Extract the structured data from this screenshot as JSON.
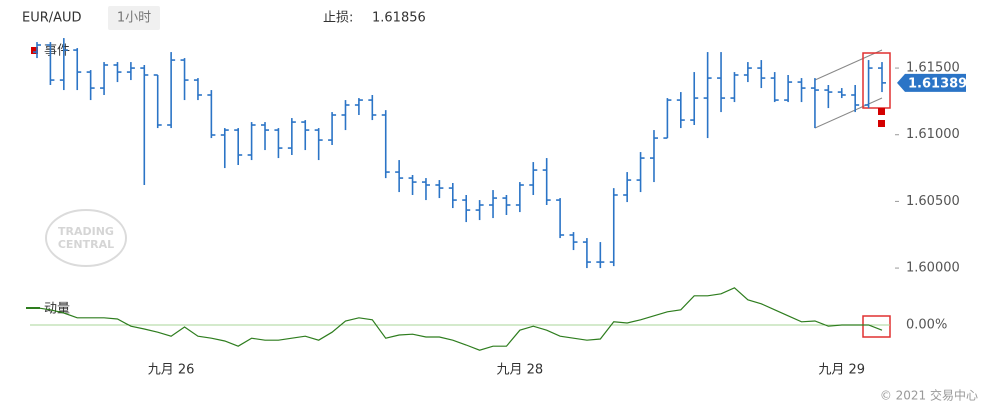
{
  "header": {
    "symbol": "EUR/AUD",
    "interval": "1小时",
    "stop_label": "止损:",
    "stop_value": 1.61856
  },
  "chart_data": [
    {
      "type": "ohlc",
      "legend": "事件",
      "color": "#2b74c6",
      "categories": [
        null,
        null,
        null,
        null,
        null,
        null,
        null,
        null,
        null,
        null,
        "九月 26",
        null,
        null,
        null,
        null,
        null,
        null,
        null,
        null,
        null,
        null,
        null,
        null,
        null,
        null,
        null,
        null,
        null,
        null,
        null,
        null,
        null,
        null,
        null,
        null,
        null,
        "九月 28",
        null,
        null,
        null,
        null,
        null,
        null,
        null,
        null,
        null,
        null,
        null,
        null,
        null,
        null,
        null,
        null,
        null,
        null,
        null,
        null,
        null,
        null,
        null,
        "九月 29",
        null,
        null,
        null
      ],
      "open": [
        1.6162,
        1.61673,
        1.6141,
        1.61635,
        1.6147,
        1.6135,
        1.61523,
        1.6147,
        1.615,
        1.61448,
        1.61073,
        1.6156,
        1.6141,
        1.61298,
        1.60998,
        1.61035,
        1.60848,
        1.61073,
        1.61035,
        1.609,
        1.61095,
        1.61035,
        1.6096,
        1.61148,
        1.61223,
        1.6126,
        1.61148,
        1.6072,
        1.60675,
        1.60645,
        1.60623,
        1.606,
        1.6051,
        1.60435,
        1.60473,
        1.60525,
        1.60473,
        1.60623,
        1.60735,
        1.6051,
        1.60248,
        1.60195,
        1.60045,
        1.60045,
        1.60548,
        1.6066,
        1.60825,
        1.60975,
        1.6126,
        1.6111,
        1.61275,
        1.61425,
        1.61275,
        1.61448,
        1.615,
        1.61425,
        1.6126,
        1.61395,
        1.6135,
        1.61335,
        1.6132,
        1.61298,
        1.61223,
        1.615
      ],
      "high": [
        1.61695,
        1.61695,
        1.61725,
        1.6165,
        1.61485,
        1.61545,
        1.61545,
        1.61545,
        1.61523,
        1.61448,
        1.6162,
        1.61575,
        1.61425,
        1.61335,
        1.6105,
        1.6105,
        1.61095,
        1.61095,
        1.6105,
        1.61125,
        1.6111,
        1.6105,
        1.6117,
        1.6126,
        1.61275,
        1.61298,
        1.61185,
        1.6081,
        1.60698,
        1.60675,
        1.6066,
        1.60638,
        1.60548,
        1.6051,
        1.60585,
        1.60548,
        1.60645,
        1.60795,
        1.60825,
        1.60525,
        1.6027,
        1.60225,
        1.60195,
        1.606,
        1.6072,
        1.6087,
        1.61035,
        1.61275,
        1.6132,
        1.6147,
        1.6162,
        1.6162,
        1.6147,
        1.61545,
        1.6156,
        1.6147,
        1.61448,
        1.61425,
        1.61425,
        1.61373,
        1.6135,
        1.61373,
        1.6156,
        1.61545
      ],
      "low": [
        1.61575,
        1.61373,
        1.61335,
        1.61335,
        1.6126,
        1.61298,
        1.61395,
        1.6141,
        1.60623,
        1.6105,
        1.6105,
        1.6126,
        1.6126,
        1.60975,
        1.6075,
        1.60773,
        1.6081,
        1.60885,
        1.60825,
        1.60848,
        1.60885,
        1.6081,
        1.60923,
        1.61035,
        1.61148,
        1.6111,
        1.60675,
        1.6057,
        1.60548,
        1.6051,
        1.60525,
        1.6045,
        1.60345,
        1.6036,
        1.60375,
        1.60398,
        1.6042,
        1.60548,
        1.60473,
        1.60225,
        1.60135,
        1.6,
        1.6,
        1.60015,
        1.60495,
        1.6057,
        1.60645,
        1.60975,
        1.6105,
        1.61073,
        1.60975,
        1.6117,
        1.61245,
        1.61395,
        1.6135,
        1.61245,
        1.61245,
        1.61245,
        1.6105,
        1.612,
        1.61275,
        1.6117,
        1.612,
        1.6132
      ],
      "close": [
        1.61673,
        1.6141,
        1.61635,
        1.6147,
        1.6135,
        1.61523,
        1.6147,
        1.615,
        1.61448,
        1.61073,
        1.6156,
        1.6141,
        1.61298,
        1.60998,
        1.61035,
        1.60848,
        1.61073,
        1.61035,
        1.609,
        1.61095,
        1.61035,
        1.6096,
        1.61148,
        1.61223,
        1.6126,
        1.61148,
        1.6072,
        1.60675,
        1.60645,
        1.60623,
        1.606,
        1.6051,
        1.60435,
        1.60473,
        1.60525,
        1.60473,
        1.60623,
        1.60735,
        1.6051,
        1.60248,
        1.60195,
        1.60045,
        1.60045,
        1.60548,
        1.6066,
        1.60825,
        1.60975,
        1.6126,
        1.6111,
        1.61275,
        1.61425,
        1.61275,
        1.61448,
        1.615,
        1.61425,
        1.6126,
        1.61395,
        1.6135,
        1.61335,
        1.6132,
        1.61298,
        1.61223,
        1.615,
        1.61389
      ],
      "ylim": [
        1.59873,
        1.61748
      ],
      "yticks": [
        {
          "value": 1.6,
          "label": "1.60000"
        },
        {
          "value": 1.605,
          "label": "1.60500"
        },
        {
          "value": 1.61,
          "label": "1.61000"
        },
        {
          "value": 1.615,
          "label": "1.61500"
        }
      ]
    },
    {
      "type": "line",
      "series": [
        {
          "name": "动量",
          "color": "#2e7d1e",
          "values": [
            0.43,
            0.38,
            0.3,
            0.18,
            0.18,
            0.18,
            0.15,
            -0.03,
            -0.1,
            -0.18,
            -0.28,
            -0.05,
            -0.28,
            -0.33,
            -0.4,
            -0.53,
            -0.33,
            -0.38,
            -0.38,
            -0.33,
            -0.28,
            -0.38,
            -0.18,
            0.1,
            0.18,
            0.13,
            -0.33,
            -0.25,
            -0.23,
            -0.3,
            -0.3,
            -0.38,
            -0.5,
            -0.63,
            -0.53,
            -0.53,
            -0.13,
            -0.03,
            -0.13,
            -0.28,
            -0.33,
            -0.38,
            -0.35,
            0.08,
            0.05,
            0.13,
            0.23,
            0.33,
            0.38,
            0.73,
            0.73,
            0.78,
            0.93,
            0.63,
            0.53,
            0.38,
            0.23,
            0.08,
            0.1,
            -0.03,
            0,
            0,
            0,
            -0.13
          ]
        }
      ],
      "ylim": [
        -0.7,
        1.0
      ],
      "yticks": [
        {
          "value": 0,
          "label": "0.00%"
        }
      ]
    }
  ],
  "watermark": [
    "TRADING",
    "CENTRAL"
  ],
  "footer": "© 2021 交易中心"
}
